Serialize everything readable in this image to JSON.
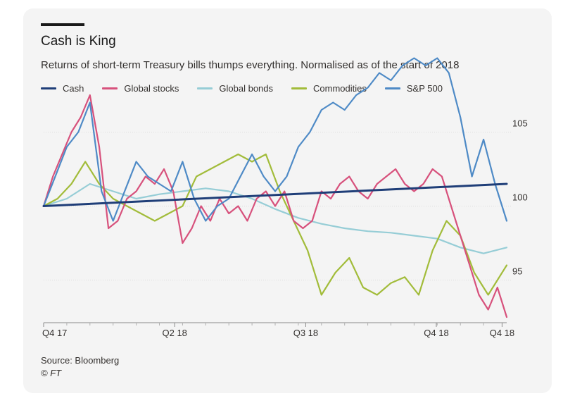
{
  "title": "Cash is King",
  "subtitle": "Returns of short-term Treasury bills thumps everything. Normalised as of the start of 2018",
  "source": "Source: Bloomberg",
  "credit": "© FT",
  "chart_data": {
    "type": "line",
    "title": "Cash is King",
    "subtitle": "Returns of short-term Treasury bills thumps everything. Normalised as of the start of 2018",
    "xlabel": "",
    "ylabel": "",
    "ylim": [
      92.5,
      107.5
    ],
    "y_ticks": [
      95,
      100,
      105
    ],
    "x_ticks": [
      {
        "label": "Q4 17",
        "pos": 0.0
      },
      {
        "label": "Q2 18",
        "pos": 0.283
      },
      {
        "label": "Q3 18",
        "pos": 0.566
      },
      {
        "label": "Q4 18",
        "pos": 0.848
      },
      {
        "label": "Q4 18",
        "pos": 0.99
      }
    ],
    "grid": true,
    "legend_position": "top-left",
    "series": [
      {
        "name": "Cash",
        "color": "#1f3e78",
        "x": [
          0,
          1
        ],
        "values": [
          100.0,
          101.5
        ]
      },
      {
        "name": "Global stocks",
        "color": "#d7517c",
        "x": [
          0,
          0.02,
          0.04,
          0.06,
          0.08,
          0.1,
          0.12,
          0.14,
          0.16,
          0.18,
          0.2,
          0.22,
          0.24,
          0.26,
          0.28,
          0.3,
          0.32,
          0.34,
          0.36,
          0.38,
          0.4,
          0.42,
          0.44,
          0.46,
          0.48,
          0.5,
          0.52,
          0.54,
          0.56,
          0.58,
          0.6,
          0.62,
          0.64,
          0.66,
          0.68,
          0.7,
          0.72,
          0.74,
          0.76,
          0.78,
          0.8,
          0.82,
          0.84,
          0.86,
          0.88,
          0.9,
          0.92,
          0.94,
          0.96,
          0.98,
          1.0
        ],
        "values": [
          100,
          102,
          103.5,
          105,
          106,
          107.5,
          104,
          98.5,
          99,
          100.5,
          101,
          102,
          101.5,
          102.5,
          101,
          97.5,
          98.5,
          100,
          99,
          100.5,
          99.5,
          100,
          99,
          100.5,
          101,
          100,
          101,
          99,
          98.5,
          99,
          101,
          100.5,
          101.5,
          102,
          101,
          100.5,
          101.5,
          102,
          102.5,
          101.5,
          101,
          101.5,
          102.5,
          102,
          100,
          98,
          96,
          94,
          93,
          94.5,
          92.5
        ]
      },
      {
        "name": "Global bonds",
        "color": "#96cdd6",
        "x": [
          0,
          0.05,
          0.1,
          0.15,
          0.2,
          0.25,
          0.3,
          0.35,
          0.4,
          0.45,
          0.5,
          0.55,
          0.6,
          0.65,
          0.7,
          0.75,
          0.8,
          0.85,
          0.9,
          0.95,
          1.0
        ],
        "values": [
          100,
          100.5,
          101.5,
          101,
          100.5,
          100.8,
          101,
          101.2,
          101,
          100.5,
          99.8,
          99.2,
          98.8,
          98.5,
          98.3,
          98.2,
          98,
          97.8,
          97.2,
          96.8,
          97.2
        ]
      },
      {
        "name": "Commodities",
        "color": "#a2bc3a",
        "x": [
          0,
          0.03,
          0.06,
          0.09,
          0.12,
          0.15,
          0.18,
          0.21,
          0.24,
          0.27,
          0.3,
          0.33,
          0.36,
          0.39,
          0.42,
          0.45,
          0.48,
          0.51,
          0.54,
          0.57,
          0.6,
          0.63,
          0.66,
          0.69,
          0.72,
          0.75,
          0.78,
          0.81,
          0.84,
          0.87,
          0.9,
          0.93,
          0.96,
          1.0
        ],
        "values": [
          100,
          100.5,
          101.5,
          103,
          101.5,
          100.5,
          100,
          99.5,
          99,
          99.5,
          100,
          102,
          102.5,
          103,
          103.5,
          103,
          103.5,
          101,
          99,
          97,
          94,
          95.5,
          96.5,
          94.5,
          94,
          94.8,
          95.2,
          94,
          97,
          99,
          98,
          95.5,
          94,
          96
        ]
      },
      {
        "name": "S&P 500",
        "color": "#4e8ac6",
        "x": [
          0,
          0.025,
          0.05,
          0.075,
          0.1,
          0.125,
          0.15,
          0.175,
          0.2,
          0.225,
          0.25,
          0.275,
          0.3,
          0.325,
          0.35,
          0.375,
          0.4,
          0.425,
          0.45,
          0.475,
          0.5,
          0.525,
          0.55,
          0.575,
          0.6,
          0.625,
          0.65,
          0.675,
          0.7,
          0.725,
          0.75,
          0.775,
          0.8,
          0.825,
          0.85,
          0.875,
          0.9,
          0.925,
          0.95,
          0.975,
          1.0
        ],
        "values": [
          100,
          102,
          104,
          105,
          107,
          101,
          99,
          101,
          103,
          102,
          101.5,
          101,
          103,
          100.5,
          99,
          100,
          100.5,
          102,
          103.5,
          102,
          101,
          102,
          104,
          105,
          106.5,
          107,
          106.5,
          107.5,
          108,
          109,
          108.5,
          109.5,
          110,
          109.5,
          110,
          109,
          106,
          102,
          104.5,
          101.5,
          99
        ]
      }
    ]
  }
}
